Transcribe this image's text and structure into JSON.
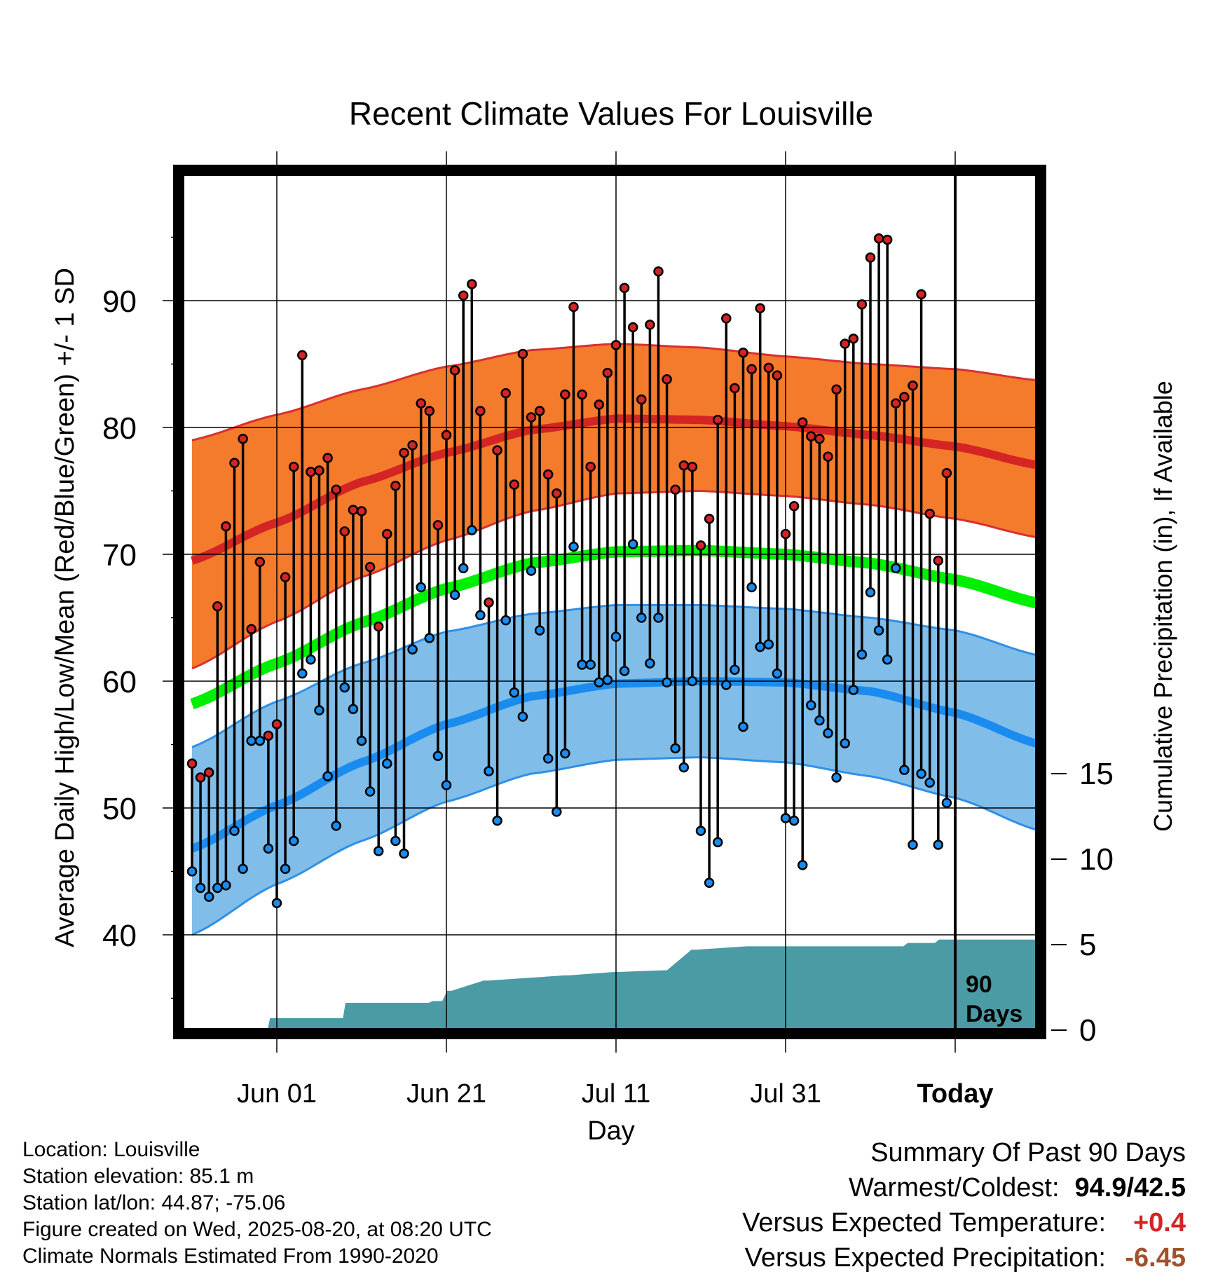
{
  "chart_data": {
    "type": "line",
    "title": "Recent Climate Values For Louisville",
    "xlabel": "Day",
    "ylabel": "Average Daily High/Low/Mean (Red/Blue/Green) +/- 1 SD",
    "y2label": "Cumulative Precipitation (in), If Available",
    "x_ticks": [
      {
        "day": 10,
        "label": "Jun 01"
      },
      {
        "day": 30,
        "label": "Jun 21"
      },
      {
        "day": 50,
        "label": "Jul 11"
      },
      {
        "day": 70,
        "label": "Jul 31"
      },
      {
        "day": 90,
        "label": "Today"
      }
    ],
    "xlim": [
      0,
      100
    ],
    "ylim": [
      33,
      98
    ],
    "y_ticks": [
      40,
      50,
      60,
      70,
      80,
      90
    ],
    "y2lim": [
      0,
      17
    ],
    "y2_ticks": [
      0,
      5,
      10,
      15
    ],
    "today_label": "90 Days",
    "colors": {
      "high_band": "#f47a2c",
      "high_mean": "#d42424",
      "high_edge": "#d83030",
      "low_band": "#80bde8",
      "low_mean": "#1a8cf0",
      "low_edge": "#2f8fe6",
      "mean": "#00ee00",
      "precip": "#4a9ba4",
      "high_marker": "#d42424",
      "low_marker": "#1a8cf0"
    },
    "normals": {
      "days": [
        0,
        10,
        20,
        30,
        40,
        50,
        60,
        70,
        80,
        90,
        100
      ],
      "high_mean": [
        69.5,
        72.5,
        75.7,
        78.0,
        79.8,
        80.7,
        80.6,
        80.1,
        79.4,
        78.5,
        77.0
      ],
      "high_upper": [
        79.0,
        81.0,
        83.0,
        84.8,
        86.1,
        86.6,
        86.3,
        85.6,
        85.0,
        84.6,
        83.7
      ],
      "high_lower": [
        61.0,
        64.7,
        68.2,
        71.1,
        73.4,
        74.8,
        75.0,
        74.6,
        73.9,
        72.8,
        71.3
      ],
      "low_mean": [
        46.8,
        50.2,
        53.6,
        56.6,
        58.8,
        59.8,
        60.0,
        59.9,
        59.2,
        57.5,
        55.0
      ],
      "low_upper": [
        54.8,
        58.4,
        61.4,
        63.9,
        65.3,
        66.0,
        66.0,
        65.7,
        65.0,
        64.0,
        62.0
      ],
      "low_lower": [
        40.0,
        44.0,
        47.4,
        50.5,
        52.7,
        53.8,
        54.0,
        53.6,
        52.5,
        50.8,
        48.2
      ],
      "mean": [
        58.2,
        61.4,
        64.6,
        67.3,
        69.3,
        70.2,
        70.3,
        70.0,
        69.3,
        68.0,
        66.1
      ]
    },
    "series": [
      {
        "name": "Daily High",
        "values": [
          53.5,
          52.4,
          52.8,
          65.9,
          72.2,
          77.2,
          79.1,
          64.1,
          69.4,
          55.7,
          56.6,
          68.2,
          76.9,
          85.7,
          76.5,
          76.6,
          77.6,
          75.1,
          71.8,
          73.5,
          73.4,
          69.0,
          64.3,
          71.6,
          75.4,
          78.0,
          78.6,
          81.9,
          81.3,
          72.3,
          79.4,
          84.5,
          90.4,
          91.3,
          81.3,
          66.2,
          78.2,
          82.7,
          75.5,
          85.8,
          80.8,
          81.3,
          76.3,
          74.8,
          82.6,
          89.5,
          82.6,
          76.9,
          81.8,
          84.3,
          86.5,
          91.0,
          87.9,
          82.2,
          88.1,
          92.3,
          83.8,
          75.1,
          77.0,
          76.9,
          70.7,
          72.8,
          80.6,
          88.6,
          83.1,
          85.9,
          84.6,
          89.4,
          84.7,
          84.1,
          71.6,
          73.8,
          80.4,
          79.3,
          79.1,
          77.7,
          83.0,
          86.6,
          87.0,
          89.7,
          93.4,
          94.9,
          94.8,
          81.9,
          82.4,
          83.3,
          90.5,
          73.2,
          69.5,
          76.4
        ]
      },
      {
        "name": "Daily Low",
        "values": [
          45.0,
          43.7,
          43.0,
          43.7,
          43.9,
          48.2,
          45.2,
          55.3,
          55.3,
          46.8,
          42.5,
          45.2,
          47.4,
          60.6,
          61.7,
          57.7,
          52.5,
          48.6,
          59.5,
          57.8,
          55.3,
          51.3,
          46.6,
          53.5,
          47.4,
          46.4,
          62.5,
          67.4,
          63.4,
          54.1,
          51.8,
          66.8,
          68.9,
          71.9,
          65.2,
          52.9,
          49.0,
          64.8,
          59.1,
          57.2,
          68.7,
          64.0,
          53.9,
          49.7,
          54.3,
          70.6,
          61.3,
          61.3,
          59.9,
          60.1,
          63.5,
          60.8,
          70.8,
          65.0,
          61.4,
          65.0,
          59.9,
          54.7,
          53.2,
          60.0,
          48.2,
          44.1,
          47.3,
          59.7,
          60.9,
          56.4,
          67.4,
          62.7,
          62.9,
          60.6,
          49.2,
          49.0,
          45.5,
          58.1,
          56.9,
          55.9,
          52.4,
          55.1,
          59.3,
          62.1,
          67.0,
          64.0,
          61.7,
          68.9,
          53.0,
          47.1,
          52.7,
          52.0,
          47.1,
          50.4
        ]
      },
      {
        "name": "Cumulative Precipitation",
        "days": [
          0,
          8.9,
          9.2,
          17.8,
          18.1,
          27.9,
          28.4,
          29.5,
          30.1,
          30.6,
          34.4,
          35.0,
          43.9,
          44.4,
          49.8,
          50.3,
          55.6,
          56.0,
          58.9,
          59.4,
          65.4,
          65.9,
          83.9,
          84.4,
          87.6,
          88.1,
          100
        ],
        "values": [
          0,
          0,
          0.7,
          0.7,
          1.6,
          1.6,
          1.7,
          1.7,
          2.3,
          2.3,
          2.9,
          2.9,
          3.2,
          3.2,
          3.4,
          3.4,
          3.5,
          3.5,
          4.7,
          4.7,
          4.9,
          4.9,
          4.9,
          5.1,
          5.1,
          5.3,
          5.3
        ]
      }
    ]
  },
  "info": {
    "location": "Location: Louisville",
    "elevation": "Station elevation: 85.1 m",
    "latlon": "Station lat/lon: 44.87; -75.06",
    "created": "Figure created on Wed, 2025-08-20, at 08:20 UTC",
    "normals": "Climate Normals Estimated From 1990-2020"
  },
  "summary": {
    "title": "Summary Of Past 90 Days",
    "warm_label": "Warmest/Coldest:",
    "warm_value": "94.9/42.5",
    "temp_label": "Versus Expected Temperature:",
    "temp_value": "+0.4",
    "temp_color": "#d42424",
    "precip_label": "Versus Expected Precipitation:",
    "precip_value": "-6.45",
    "precip_color": "#a0522d"
  }
}
